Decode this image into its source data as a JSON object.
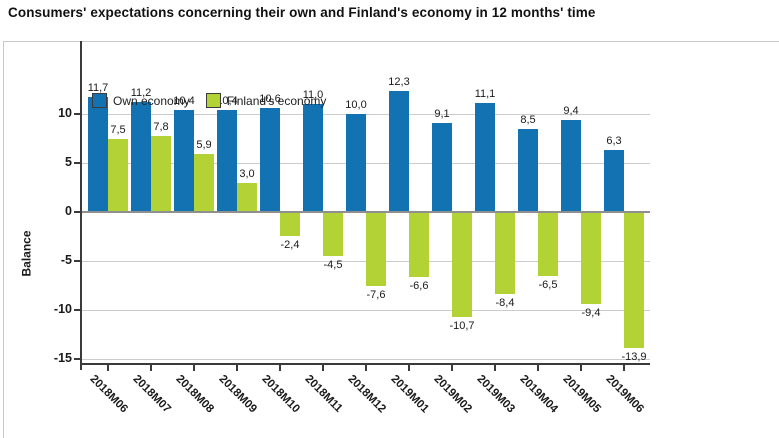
{
  "title": "Consumers' expectations concerning their own and Finland's economy in 12 months' time",
  "legend": [
    {
      "label": "Own economy",
      "color": "#1272b2"
    },
    {
      "label": "Finland's economy",
      "color": "#b2d235"
    }
  ],
  "chart_data": {
    "type": "bar",
    "title": "Consumers' expectations concerning their own and Finland's economy in 12 months' time",
    "xlabel": "",
    "ylabel": "Balance",
    "categories": [
      "2018M06",
      "2018M07",
      "2018M08",
      "2018M09",
      "2018M10",
      "2018M11",
      "2018M12",
      "2019M01",
      "2019M02",
      "2019M03",
      "2019M04",
      "2019M05",
      "2019M06"
    ],
    "series": [
      {
        "name": "Own economy",
        "color": "#1272b2",
        "values": [
          11.7,
          11.2,
          10.4,
          10.4,
          10.6,
          11.0,
          10.0,
          12.3,
          9.1,
          11.1,
          8.5,
          9.4,
          6.3
        ],
        "labels": [
          "11,7",
          "11,2",
          "10,4",
          "10,4",
          "10,6",
          "11,0",
          "10,0",
          "12,3",
          "9,1",
          "11,1",
          "8,5",
          "9,4",
          "6,3"
        ]
      },
      {
        "name": "Finland's economy",
        "color": "#b2d235",
        "values": [
          7.5,
          7.8,
          5.9,
          3.0,
          -2.4,
          -4.5,
          -7.6,
          -6.6,
          -10.7,
          -8.4,
          -6.5,
          -9.4,
          -13.9
        ],
        "labels": [
          "7,5",
          "7,8",
          "5,9",
          "3,0",
          "-2,4",
          "-4,5",
          "-7,6",
          "-6,6",
          "-10,7",
          "-8,4",
          "-6,5",
          "-9,4",
          "-13,9"
        ]
      }
    ],
    "yticks": [
      10,
      5,
      0,
      -5,
      -10,
      -15
    ],
    "ytick_labels": [
      "10",
      "5",
      "0",
      "-5",
      "-10",
      "-15"
    ],
    "ylim": [
      -15.5,
      17.1
    ],
    "grid": true,
    "legend_position": "top-left",
    "value_label_decimal_separator": ","
  },
  "colors": {
    "axis": "#3a3a3a",
    "gridline": "#cccccc",
    "zero_line": "#8f8f8f",
    "text": "#1a1a1a",
    "background": "#ffffff"
  }
}
